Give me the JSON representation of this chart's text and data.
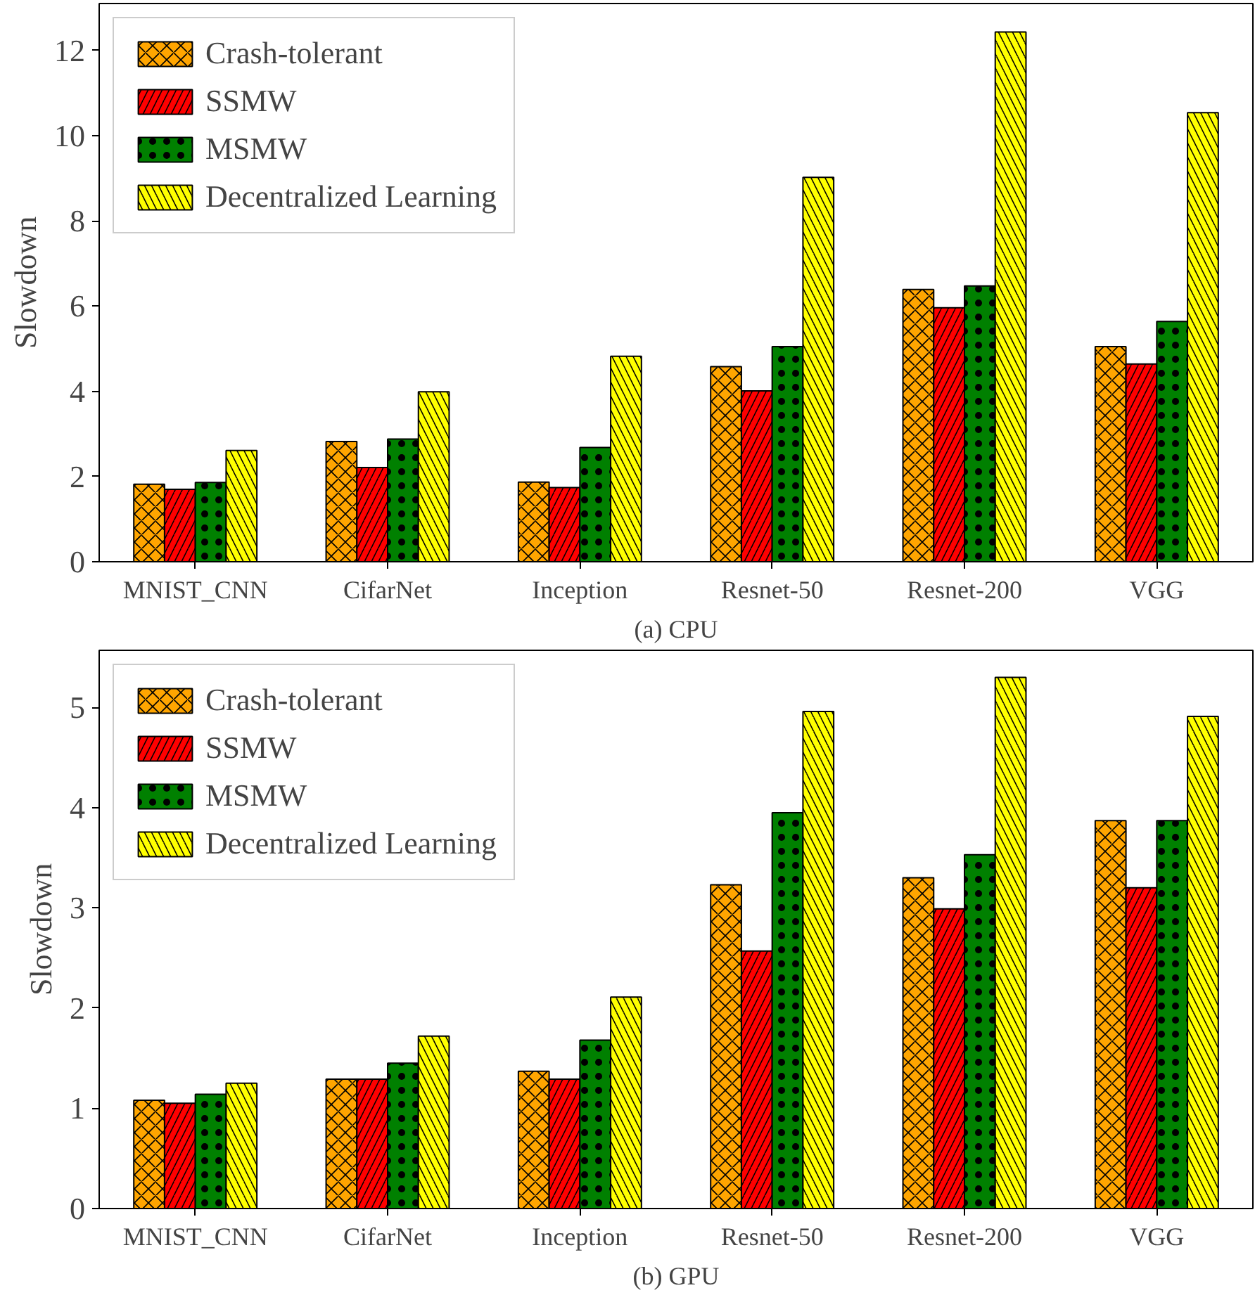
{
  "chart_data": [
    {
      "type": "bar",
      "xlabel": "(a) CPU",
      "ylabel": "Slowdown",
      "categories": [
        "MNIST_CNN",
        "CifarNet",
        "Inception",
        "Resnet-50",
        "Resnet-200",
        "VGG"
      ],
      "ylim": [
        0,
        13.1
      ],
      "yticks": [
        0,
        2,
        4,
        6,
        8,
        10,
        12
      ],
      "grid": false,
      "legend": "top left",
      "series": [
        {
          "name": "Crash-tolerant",
          "color": "#ffa500",
          "values": [
            1.82,
            2.82,
            1.87,
            4.58,
            6.39,
            5.05
          ]
        },
        {
          "name": "SSMW",
          "color": "#ff0000",
          "values": [
            1.7,
            2.21,
            1.74,
            4.01,
            5.96,
            4.64
          ]
        },
        {
          "name": "MSMW",
          "color": "#008000",
          "values": [
            1.86,
            2.88,
            2.68,
            5.05,
            6.47,
            5.64
          ]
        },
        {
          "name": "Decentralized Learning",
          "color": "#ffff00",
          "values": [
            2.61,
            3.99,
            4.82,
            9.02,
            12.43,
            10.54
          ]
        }
      ]
    },
    {
      "type": "bar",
      "xlabel": "(b) GPU",
      "ylabel": "Slowdown",
      "categories": [
        "MNIST_CNN",
        "CifarNet",
        "Inception",
        "Resnet-50",
        "Resnet-200",
        "VGG"
      ],
      "ylim": [
        0,
        5.57
      ],
      "yticks": [
        0,
        1,
        2,
        3,
        4,
        5
      ],
      "grid": false,
      "legend": "top left",
      "series": [
        {
          "name": "Crash-tolerant",
          "color": "#ffa500",
          "values": [
            1.08,
            1.29,
            1.37,
            3.23,
            3.3,
            3.87
          ]
        },
        {
          "name": "SSMW",
          "color": "#ff0000",
          "values": [
            1.05,
            1.29,
            1.29,
            2.57,
            2.99,
            3.2
          ]
        },
        {
          "name": "MSMW",
          "color": "#008000",
          "values": [
            1.14,
            1.45,
            1.68,
            3.95,
            3.53,
            3.87
          ]
        },
        {
          "name": "Decentralized Learning",
          "color": "#ffff00",
          "values": [
            1.25,
            1.72,
            2.11,
            4.96,
            5.3,
            4.91
          ]
        }
      ]
    }
  ]
}
